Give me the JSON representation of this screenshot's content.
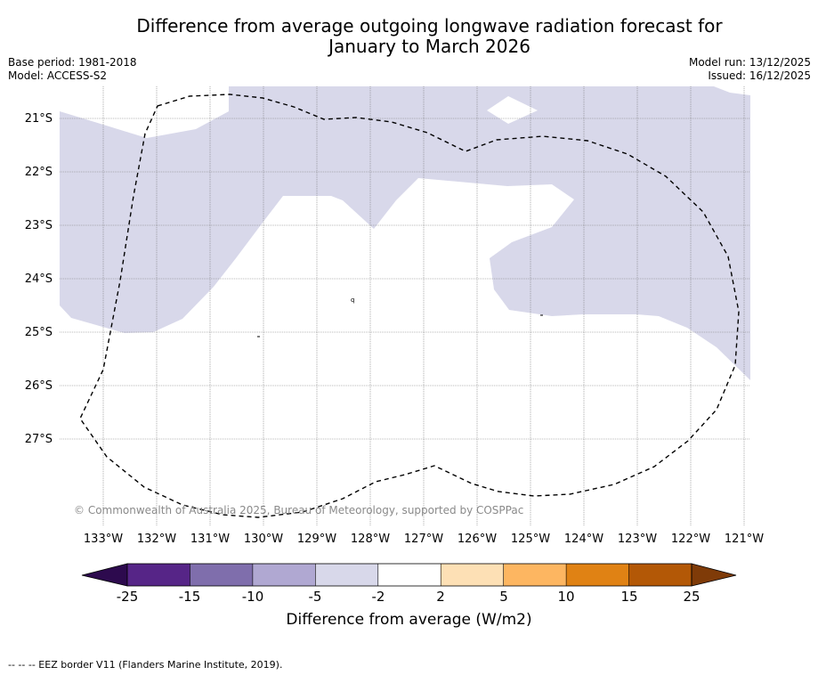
{
  "title": {
    "line1": "Difference from average outgoing longwave radiation forecast for",
    "line2": "January to March 2026"
  },
  "meta_left": {
    "base_period": "Base period: 1981-2018",
    "model": "Model: ACCESS-S2"
  },
  "meta_right": {
    "model_run": "Model run: 13/12/2025",
    "issued": "Issued: 16/12/2025"
  },
  "map": {
    "lat_labels": [
      "21°S",
      "22°S",
      "23°S",
      "24°S",
      "25°S",
      "26°S",
      "27°S"
    ],
    "lon_labels": [
      "133°W",
      "132°W",
      "131°W",
      "130°W",
      "129°W",
      "128°W",
      "127°W",
      "126°W",
      "125°W",
      "124°W",
      "123°W",
      "122°W",
      "121°W"
    ],
    "copyright": "© Commonwealth of Australia 2025, Bureau of Meteorology, supported by COSPPac",
    "anomaly_fill_color": "#d8d8ea",
    "eez_line_color": "#000000"
  },
  "colorbar": {
    "ticks": [
      "-25",
      "-15",
      "-10",
      "-5",
      "-2",
      "2",
      "5",
      "10",
      "15",
      "25"
    ],
    "colors": [
      "#2d0a4e",
      "#562587",
      "#7f6eac",
      "#b0a8d2",
      "#d8d8ea",
      "#ffffff",
      "#fde0b5",
      "#fdb661",
      "#e08214",
      "#b35806",
      "#7f3b08"
    ],
    "label": "Difference from average (W/m2)"
  },
  "footer": "--  --  -- EEZ border V11 (Flanders Marine Institute, 2019)."
}
